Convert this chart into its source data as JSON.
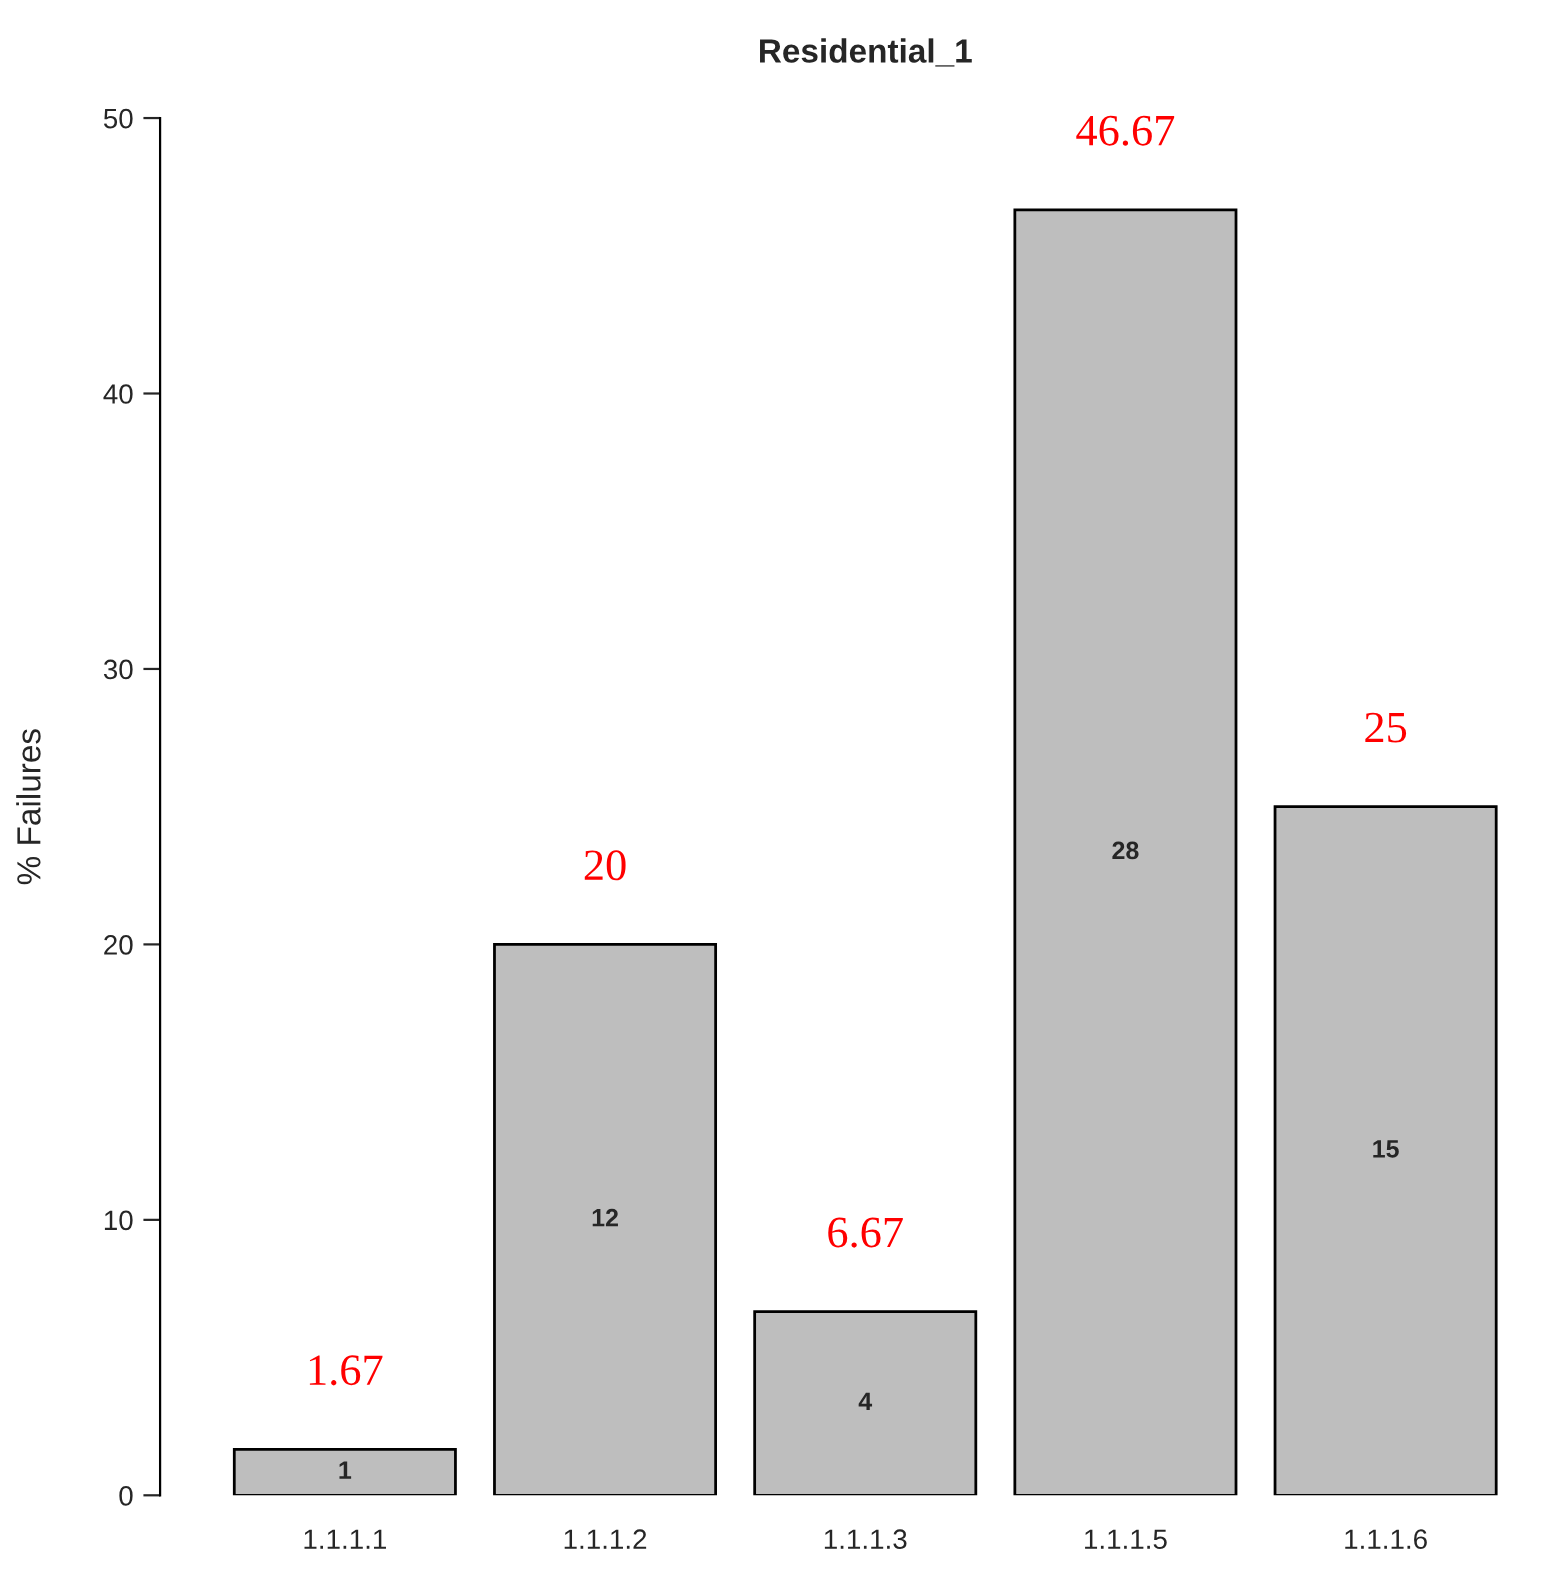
{
  "chart_data": {
    "type": "bar",
    "title": "Residential_1",
    "ylabel": "% Failures",
    "categories": [
      "1.1.1.1",
      "1.1.1.2",
      "1.1.1.3",
      "1.1.1.5",
      "1.1.1.6"
    ],
    "values": [
      1.67,
      20,
      6.67,
      46.67,
      25
    ],
    "color": "#bebebe",
    "data_labels": true,
    "ylim": [
      0,
      50
    ],
    "yticks": [
      0,
      10,
      20,
      30,
      40,
      50
    ],
    "grid": false,
    "annotations": [
      "1",
      "12",
      "4",
      "28",
      "15"
    ]
  }
}
